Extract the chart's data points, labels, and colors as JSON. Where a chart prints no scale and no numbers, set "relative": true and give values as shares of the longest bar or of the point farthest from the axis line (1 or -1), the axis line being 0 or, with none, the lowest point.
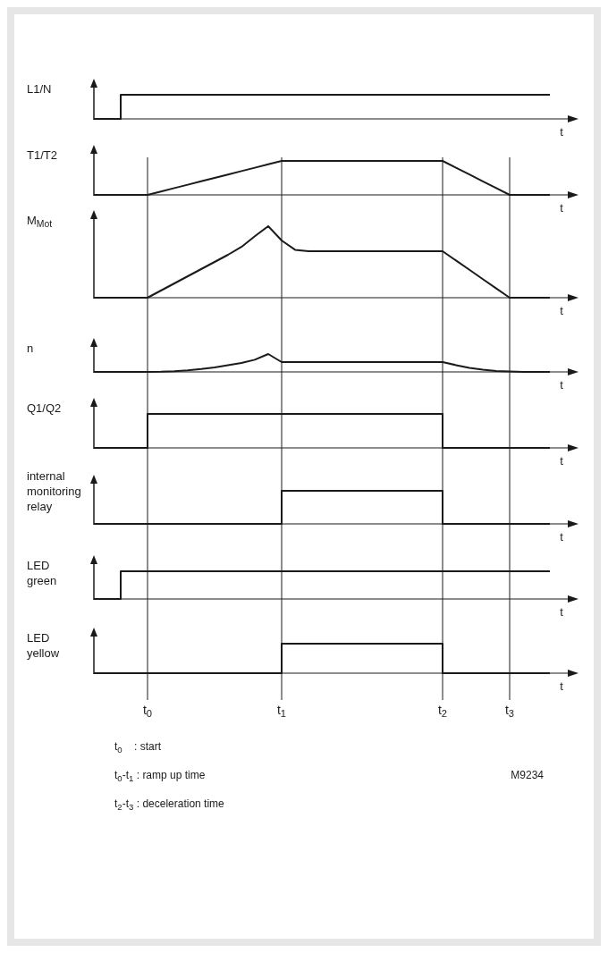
{
  "chart_data": [
    {
      "type": "step",
      "ylabel": "L1/N",
      "xlabel": "t",
      "relative": true,
      "tick_labels": false,
      "color": "#1a1a1a",
      "categories": [
        null,
        null,
        null,
        null,
        null,
        null,
        null,
        null,
        null,
        null,
        null,
        null,
        null,
        null,
        null,
        null,
        null,
        null,
        null,
        null,
        null,
        null,
        null,
        null,
        null,
        null,
        null,
        null,
        null,
        null,
        null,
        null,
        null,
        null,
        null,
        null,
        null
      ],
      "values": [
        0,
        0,
        1,
        1,
        1,
        1,
        1,
        1,
        1,
        1,
        1,
        1,
        1,
        1,
        1,
        1,
        1,
        1,
        1,
        1,
        1,
        1,
        1,
        1,
        1,
        1,
        1,
        1,
        1,
        1,
        1,
        1,
        1,
        1,
        1,
        null,
        null
      ]
    },
    {
      "type": "line",
      "ylabel": "T1/T2",
      "xlabel": "t",
      "relative": true,
      "tick_labels": false,
      "color": "#1a1a1a",
      "categories": [
        null,
        null,
        null,
        null,
        null,
        null,
        null,
        null,
        null,
        null,
        null,
        null,
        null,
        null,
        null,
        null,
        null,
        null,
        null,
        null,
        null,
        null,
        null,
        null,
        null,
        null,
        null,
        null,
        null,
        null,
        null,
        null,
        null,
        null,
        null,
        null,
        null
      ],
      "values": [
        0,
        0,
        0,
        0,
        0,
        0.1,
        0.2,
        0.3,
        0.4,
        0.5,
        0.6,
        0.7,
        0.8,
        0.9,
        1,
        1,
        1,
        1,
        1,
        1,
        1,
        1,
        1,
        1,
        1,
        1,
        1,
        0.8,
        0.6,
        0.4,
        0.2,
        0,
        0,
        0,
        0,
        null,
        null
      ]
    },
    {
      "type": "line",
      "ylabel": "M$_{Mot}$",
      "xlabel": "t",
      "relative": true,
      "tick_labels": false,
      "color": "#1a1a1a",
      "categories": [
        null,
        null,
        null,
        null,
        null,
        null,
        null,
        null,
        null,
        null,
        null,
        null,
        null,
        null,
        null,
        null,
        null,
        null,
        null,
        null,
        null,
        null,
        null,
        null,
        null,
        null,
        null,
        null,
        null,
        null,
        null,
        null,
        null,
        null,
        null,
        null,
        null
      ],
      "values": [
        0,
        0,
        0,
        0,
        0,
        0.1,
        0.2,
        0.3,
        0.4,
        0.5,
        0.6,
        0.71,
        0.86,
        1,
        0.8,
        0.67,
        0.65,
        0.65,
        0.65,
        0.65,
        0.65,
        0.65,
        0.65,
        0.65,
        0.65,
        0.65,
        0.65,
        0.52,
        0.39,
        0.26,
        0.13,
        0,
        0,
        0,
        0,
        null,
        null
      ]
    },
    {
      "type": "line",
      "ylabel": "n",
      "xlabel": "t",
      "relative": true,
      "tick_labels": false,
      "color": "#1a1a1a",
      "categories": [
        null,
        null,
        null,
        null,
        null,
        null,
        null,
        null,
        null,
        null,
        null,
        null,
        null,
        null,
        null,
        null,
        null,
        null,
        null,
        null,
        null,
        null,
        null,
        null,
        null,
        null,
        null,
        null,
        null,
        null,
        null,
        null,
        null,
        null,
        null,
        null,
        null
      ],
      "values": [
        0,
        0,
        0,
        0,
        0,
        0.01,
        0.04,
        0.09,
        0.16,
        0.25,
        0.37,
        0.5,
        0.68,
        1,
        0.55,
        0.55,
        0.55,
        0.55,
        0.55,
        0.55,
        0.55,
        0.55,
        0.55,
        0.55,
        0.55,
        0.55,
        0.55,
        0.38,
        0.22,
        0.12,
        0.05,
        0.02,
        0,
        0,
        0,
        null,
        null
      ]
    },
    {
      "type": "step",
      "ylabel": "Q1/Q2",
      "xlabel": "t",
      "relative": true,
      "tick_labels": false,
      "color": "#1a1a1a",
      "categories": [
        null,
        null,
        null,
        null,
        null,
        null,
        null,
        null,
        null,
        null,
        null,
        null,
        null,
        null,
        null,
        null,
        null,
        null,
        null,
        null,
        null,
        null,
        null,
        null,
        null,
        null,
        null,
        null,
        null,
        null,
        null,
        null,
        null,
        null,
        null,
        null,
        null
      ],
      "values": [
        0,
        0,
        0,
        0,
        1,
        1,
        1,
        1,
        1,
        1,
        1,
        1,
        1,
        1,
        1,
        1,
        1,
        1,
        1,
        1,
        1,
        1,
        1,
        1,
        1,
        1,
        0,
        0,
        0,
        0,
        0,
        0,
        0,
        0,
        0,
        null,
        null
      ]
    },
    {
      "type": "step",
      "ylabel": "internal monitoring relay",
      "xlabel": "t",
      "relative": true,
      "tick_labels": false,
      "color": "#1a1a1a",
      "categories": [
        null,
        null,
        null,
        null,
        null,
        null,
        null,
        null,
        null,
        null,
        null,
        null,
        null,
        null,
        null,
        null,
        null,
        null,
        null,
        null,
        null,
        null,
        null,
        null,
        null,
        null,
        null,
        null,
        null,
        null,
        null,
        null,
        null,
        null,
        null,
        null,
        null
      ],
      "values": [
        0,
        0,
        0,
        0,
        0,
        0,
        0,
        0,
        0,
        0,
        0,
        0,
        0,
        0,
        1,
        1,
        1,
        1,
        1,
        1,
        1,
        1,
        1,
        1,
        1,
        1,
        0,
        0,
        0,
        0,
        0,
        0,
        0,
        0,
        0,
        null,
        null
      ]
    },
    {
      "type": "step",
      "ylabel": "LED green",
      "xlabel": "t",
      "relative": true,
      "tick_labels": false,
      "color": "#1a1a1a",
      "categories": [
        null,
        null,
        null,
        null,
        null,
        null,
        null,
        null,
        null,
        null,
        null,
        null,
        null,
        null,
        null,
        null,
        null,
        null,
        null,
        null,
        null,
        null,
        null,
        null,
        null,
        null,
        null,
        null,
        null,
        null,
        null,
        null,
        null,
        null,
        null,
        null,
        null
      ],
      "values": [
        0,
        0,
        1,
        1,
        1,
        1,
        1,
        1,
        1,
        1,
        1,
        1,
        1,
        1,
        1,
        1,
        1,
        1,
        1,
        1,
        1,
        1,
        1,
        1,
        1,
        1,
        1,
        1,
        1,
        1,
        1,
        1,
        1,
        1,
        1,
        null,
        null
      ]
    },
    {
      "type": "step",
      "ylabel": "LED yellow",
      "xlabel": "t",
      "relative": true,
      "tick_labels": "x",
      "grid": "x",
      "color": "#1a1a1a",
      "categories": [
        null,
        null,
        null,
        null,
        "t$_{0}$",
        null,
        null,
        null,
        null,
        null,
        null,
        null,
        null,
        null,
        "t$_{1}$",
        null,
        null,
        null,
        null,
        null,
        null,
        null,
        null,
        null,
        null,
        null,
        "t$_{2}$",
        null,
        null,
        null,
        null,
        "t$_{3}$",
        null,
        null,
        null,
        null,
        null
      ],
      "values": [
        0,
        0,
        0,
        0,
        0,
        0,
        0,
        0,
        0,
        0,
        0,
        0,
        0,
        0,
        1,
        1,
        1,
        1,
        1,
        1,
        1,
        1,
        1,
        1,
        1,
        1,
        0,
        0,
        0,
        0,
        0,
        0,
        0,
        0,
        0,
        null,
        null
      ],
      "annotations": [
        "t$_{0}$    : start",
        "t$_{0}$-t$_{1}$ : ramp up time",
        "t$_{2}$-t$_{3}$ : deceleration time",
        "M9234"
      ]
    }
  ]
}
